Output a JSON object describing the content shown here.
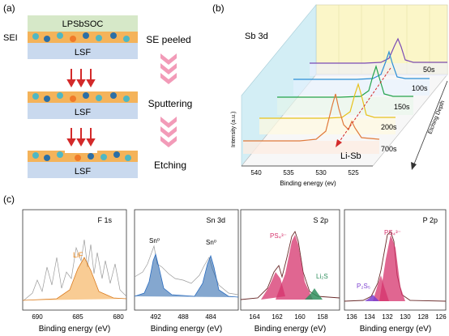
{
  "panel_a": {
    "label": "(a)",
    "sei_label": "SEI",
    "electrolyte_label": "LPSbSOC",
    "substrate_label": "LSF",
    "steps": [
      "SE peeled",
      "Sputtering",
      "Etching"
    ],
    "colors": {
      "electrolyte": "#d6e8c8",
      "substrate": "#c9d9ee",
      "sei_orange": "#f4a23c",
      "sei_teal": "#4fb7c3",
      "sei_blue": "#2c6fa6",
      "arrow_red": "#d32a2a",
      "chevron_pink": "#f29bb8"
    }
  },
  "panel_b": {
    "label": "(b)",
    "element": "Sb 3d",
    "ylabel": "Intensity (a.u.)",
    "xlabel": "Binding energy (ev)",
    "depth_label": "Etching Depth",
    "peak_label": "Li-Sb",
    "x_ticks": [
      "540",
      "535",
      "530",
      "525"
    ],
    "times": [
      "50s",
      "100s",
      "150s",
      "200s",
      "700s"
    ],
    "colors": {
      "50s": "#7a4bb5",
      "100s": "#2b8fd6",
      "150s": "#22a34a",
      "200s": "#e7c21b",
      "700s": "#e07a3b",
      "back_wall": "#fbf6c8",
      "side_wall": "#d3eef5"
    }
  },
  "panel_c": {
    "label": "(c)",
    "xlabel": "Binding energy (eV)",
    "subplots": [
      {
        "title": "F 1s",
        "peaks": [
          "LiF"
        ],
        "ticks": [
          "690",
          "685",
          "680"
        ]
      },
      {
        "title": "Sn 3d",
        "peaks": [
          "Sn⁰",
          "Sn⁰"
        ],
        "ticks": [
          "492",
          "488",
          "484"
        ]
      },
      {
        "title": "S 2p",
        "peaks": [
          "PS₄³⁻",
          "Li₂S"
        ],
        "ticks": [
          "164",
          "162",
          "160",
          "158"
        ]
      },
      {
        "title": "P 2p",
        "peaks": [
          "PS₄³⁻",
          "P₂S₅"
        ],
        "ticks": [
          "136",
          "134",
          "132",
          "130",
          "128",
          "126"
        ]
      }
    ],
    "colors": {
      "lif": "#f4a23c",
      "sn": "#1f5fa8",
      "ps4": "#d6336c",
      "li2s": "#2f8f5e",
      "p2s5": "#7b3fd0",
      "raw": "#888888",
      "envelope": "#6a2b2b"
    }
  }
}
